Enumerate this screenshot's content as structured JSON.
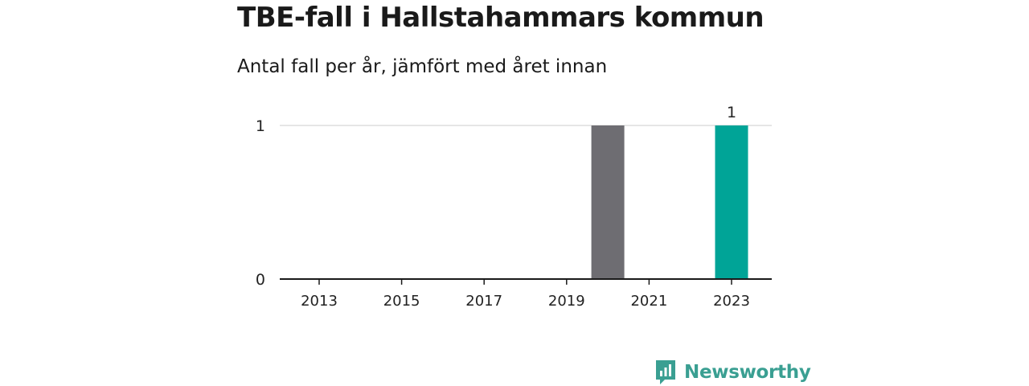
{
  "title": "TBE-fall i Hallstahammars kommun",
  "subtitle": "Antal fall per år, jämfört med året innan",
  "brand": {
    "name": "Newsworthy",
    "icon": "newsworthy-logo-icon",
    "color": "#3a9f92"
  },
  "chart_data": {
    "type": "bar",
    "categories": [
      "2013",
      "2014",
      "2015",
      "2016",
      "2017",
      "2018",
      "2019",
      "2020",
      "2021",
      "2022",
      "2023"
    ],
    "values": [
      0,
      0,
      0,
      0,
      0,
      0,
      0,
      1,
      0,
      0,
      1
    ],
    "bar_colors": [
      "#6e6d72",
      "#6e6d72",
      "#6e6d72",
      "#6e6d72",
      "#6e6d72",
      "#6e6d72",
      "#6e6d72",
      "#6e6d72",
      "#6e6d72",
      "#6e6d72",
      "#00a497"
    ],
    "x_tick_labels": [
      "2013",
      "2015",
      "2017",
      "2019",
      "2021",
      "2023"
    ],
    "y_ticks": [
      0,
      1
    ],
    "ylim": [
      0,
      1
    ],
    "data_labels": [
      {
        "category": "2023",
        "text": "1"
      }
    ],
    "grid": true,
    "xlabel": "",
    "ylabel": ""
  }
}
